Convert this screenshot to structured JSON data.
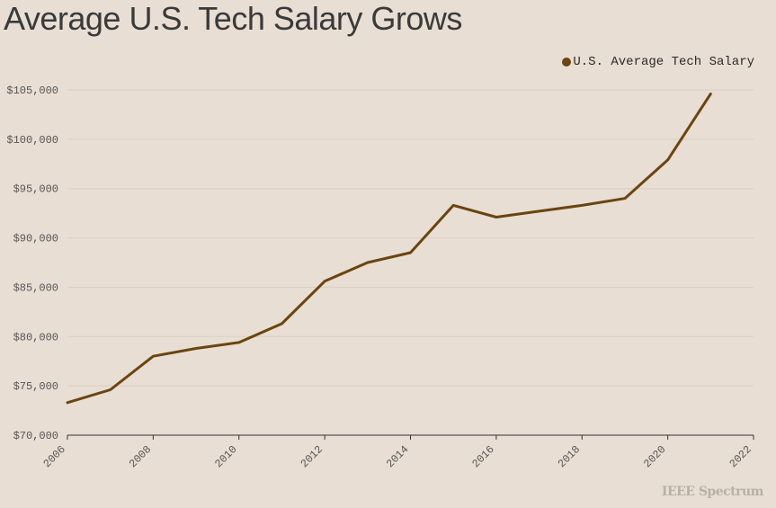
{
  "chart_data": {
    "type": "line",
    "title": "Average U.S. Tech Salary Grows",
    "xlabel": "",
    "ylabel": "",
    "xlim": [
      2006,
      2022
    ],
    "ylim": [
      70000,
      105000
    ],
    "x_ticks": [
      2006,
      2008,
      2010,
      2012,
      2014,
      2016,
      2018,
      2020,
      2022
    ],
    "y_ticks": [
      70000,
      75000,
      80000,
      85000,
      90000,
      95000,
      100000,
      105000
    ],
    "y_tick_labels": [
      "$70,000",
      "$75,000",
      "$80,000",
      "$85,000",
      "$90,000",
      "$95,000",
      "$100,000",
      "$105,000"
    ],
    "grid": "horizontal",
    "legend_position": "top-right",
    "series": [
      {
        "name": "U.S. Average Tech Salary",
        "color": "#6b4410",
        "x": [
          2006,
          2007,
          2008,
          2009,
          2010,
          2011,
          2012,
          2013,
          2014,
          2015,
          2016,
          2017,
          2018,
          2019,
          2020,
          2021
        ],
        "y": [
          73300,
          74600,
          78000,
          78800,
          79400,
          81300,
          85600,
          87500,
          88500,
          93300,
          92100,
          92700,
          93300,
          94000,
          97900,
          104600
        ]
      }
    ]
  },
  "watermark": "IEEE Spectrum",
  "colors": {
    "background": "#e8ded3",
    "grid": "#d9cfc4",
    "axis": "#333333"
  }
}
